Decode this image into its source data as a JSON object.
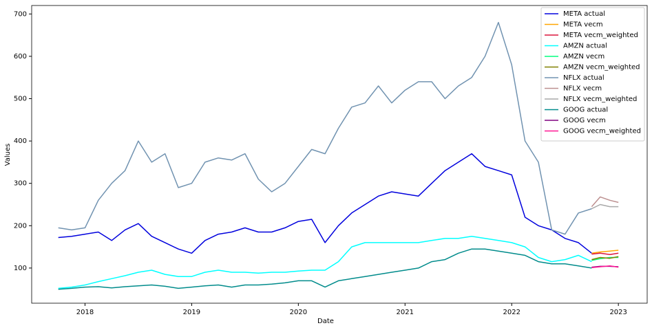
{
  "chart_data": {
    "type": "line",
    "x_label": "Date",
    "y_label": "Values",
    "xlim": [
      2017.5,
      2023.27
    ],
    "ylim": [
      17,
      720
    ],
    "xticks": [
      2018,
      2019,
      2020,
      2021,
      2022,
      2023
    ],
    "yticks": [
      100,
      200,
      300,
      400,
      500,
      600,
      700
    ],
    "legend": "upper right",
    "x": [
      2017.75,
      2017.875,
      2018.0,
      2018.125,
      2018.25,
      2018.375,
      2018.5,
      2018.625,
      2018.75,
      2018.875,
      2019.0,
      2019.125,
      2019.25,
      2019.375,
      2019.5,
      2019.625,
      2019.75,
      2019.875,
      2020.0,
      2020.125,
      2020.25,
      2020.375,
      2020.5,
      2020.625,
      2020.75,
      2020.875,
      2021.0,
      2021.125,
      2021.25,
      2021.375,
      2021.5,
      2021.625,
      2021.75,
      2021.875,
      2022.0,
      2022.125,
      2022.25,
      2022.375,
      2022.5,
      2022.625,
      2022.75
    ],
    "series": [
      {
        "name": "META actual",
        "color": "#0000dd",
        "values": [
          172,
          175,
          180,
          185,
          165,
          190,
          205,
          175,
          160,
          145,
          135,
          165,
          180,
          185,
          195,
          185,
          185,
          195,
          210,
          215,
          160,
          200,
          230,
          250,
          270,
          280,
          275,
          270,
          300,
          330,
          350,
          370,
          340,
          330,
          320,
          220,
          200,
          190,
          170,
          160,
          135
        ]
      },
      {
        "name": "META vecm",
        "color": "#ffa500",
        "x": [
          2022.75,
          2022.83,
          2022.92,
          2023.0
        ],
        "values": [
          135,
          138,
          140,
          142
        ]
      },
      {
        "name": "META vecm_weighted",
        "color": "#dc143c",
        "x": [
          2022.75,
          2022.83,
          2022.92,
          2023.0
        ],
        "values": [
          133,
          135,
          132,
          135
        ]
      },
      {
        "name": "AMZN actual",
        "color": "#00ffff",
        "values": [
          52,
          55,
          60,
          68,
          75,
          82,
          90,
          95,
          85,
          80,
          80,
          90,
          95,
          90,
          90,
          88,
          90,
          90,
          93,
          95,
          95,
          115,
          150,
          160,
          160,
          160,
          160,
          160,
          165,
          170,
          170,
          175,
          170,
          165,
          160,
          150,
          125,
          115,
          120,
          130,
          115
        ]
      },
      {
        "name": "AMZN vecm",
        "color": "#00ff7f",
        "x": [
          2022.75,
          2022.83,
          2022.92,
          2023.0
        ],
        "values": [
          118,
          122,
          125,
          125
        ]
      },
      {
        "name": "AMZN vecm_weighted",
        "color": "#808000",
        "x": [
          2022.75,
          2022.83,
          2022.92,
          2023.0
        ],
        "values": [
          120,
          125,
          123,
          127
        ]
      },
      {
        "name": "NFLX actual",
        "color": "#7092b0",
        "values": [
          195,
          190,
          195,
          260,
          300,
          330,
          400,
          350,
          370,
          290,
          300,
          350,
          360,
          355,
          370,
          310,
          280,
          300,
          340,
          380,
          370,
          430,
          480,
          490,
          530,
          490,
          520,
          540,
          540,
          500,
          530,
          550,
          600,
          680,
          580,
          400,
          350,
          190,
          180,
          230,
          240
        ]
      },
      {
        "name": "NFLX vecm",
        "color": "#bc8f8f",
        "x": [
          2022.75,
          2022.83,
          2022.92,
          2023.0
        ],
        "values": [
          245,
          268,
          260,
          255
        ]
      },
      {
        "name": "NFLX vecm_weighted",
        "color": "#a9a9a9",
        "x": [
          2022.75,
          2022.83,
          2022.92,
          2023.0
        ],
        "values": [
          240,
          250,
          245,
          245
        ]
      },
      {
        "name": "GOOG actual",
        "color": "#008b8b",
        "values": [
          50,
          52,
          55,
          56,
          53,
          56,
          58,
          60,
          57,
          52,
          55,
          58,
          60,
          55,
          60,
          60,
          62,
          65,
          70,
          70,
          55,
          70,
          75,
          80,
          85,
          90,
          95,
          100,
          115,
          120,
          135,
          145,
          145,
          140,
          135,
          130,
          115,
          110,
          110,
          105,
          100
        ]
      },
      {
        "name": "GOOG vecm",
        "color": "#800080",
        "x": [
          2022.75,
          2022.83,
          2022.92,
          2023.0
        ],
        "values": [
          102,
          104,
          104,
          103
        ]
      },
      {
        "name": "GOOG vecm_weighted",
        "color": "#ff1493",
        "x": [
          2022.75,
          2022.83,
          2022.92,
          2023.0
        ],
        "values": [
          101,
          103,
          105,
          102
        ]
      }
    ]
  }
}
